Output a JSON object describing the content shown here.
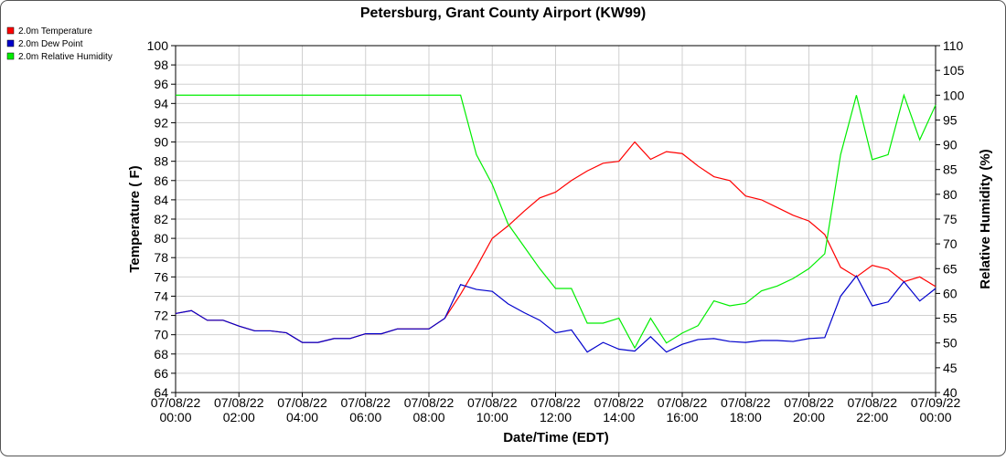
{
  "chart_data": {
    "type": "line",
    "title": "Petersburg, Grant County Airport (KW99)",
    "x_label": "Date/Time (EDT)",
    "y_label": "Temperature ( F)",
    "y2_label": "Relative Humidity (%)",
    "x": [
      0,
      0.5,
      1,
      1.5,
      2,
      2.5,
      3,
      3.5,
      4,
      4.5,
      5,
      5.5,
      6,
      6.5,
      7,
      7.5,
      8,
      8.5,
      9,
      9.5,
      10,
      10.5,
      11,
      11.5,
      12,
      12.5,
      13,
      13.5,
      14,
      14.5,
      15,
      15.5,
      16,
      16.5,
      17,
      17.5,
      18,
      18.5,
      19,
      19.5,
      20,
      20.5,
      21,
      21.5,
      22,
      22.5,
      23,
      23.5,
      24
    ],
    "series": [
      {
        "name": "2.0m Temperature",
        "color": "#ff0000",
        "axis": "y",
        "values": [
          72.2,
          72.5,
          71.5,
          71.5,
          70.9,
          70.4,
          70.4,
          70.2,
          69.2,
          69.2,
          69.6,
          69.6,
          70.1,
          70.1,
          70.6,
          70.6,
          70.6,
          71.7,
          74.2,
          77.0,
          80.0,
          81.3,
          82.8,
          84.2,
          84.8,
          86.0,
          87.0,
          87.8,
          88.0,
          90.0,
          88.2,
          89.0,
          88.8,
          87.5,
          86.4,
          86.0,
          84.4,
          84.0,
          83.2,
          82.4,
          81.8,
          80.4,
          77.0,
          76.0,
          77.2,
          76.8,
          75.5,
          76.0,
          75.0
        ]
      },
      {
        "name": "2.0m Dew Point",
        "color": "#0000cc",
        "axis": "y",
        "values": [
          72.2,
          72.5,
          71.5,
          71.5,
          70.9,
          70.4,
          70.4,
          70.2,
          69.2,
          69.2,
          69.6,
          69.6,
          70.1,
          70.1,
          70.6,
          70.6,
          70.6,
          71.7,
          75.2,
          74.7,
          74.5,
          73.2,
          72.3,
          71.5,
          70.2,
          70.5,
          68.2,
          69.2,
          68.5,
          68.3,
          69.8,
          68.2,
          69.0,
          69.5,
          69.6,
          69.3,
          69.2,
          69.4,
          69.4,
          69.3,
          69.6,
          69.7,
          74.0,
          76.1,
          73.0,
          73.4,
          75.5,
          73.5,
          74.8
        ]
      },
      {
        "name": "2.0m Relative Humidity",
        "color": "#00ee00",
        "axis": "y2",
        "values": [
          100,
          100,
          100,
          100,
          100,
          100,
          100,
          100,
          100,
          100,
          100,
          100,
          100,
          100,
          100,
          100,
          100,
          100,
          100,
          88,
          82,
          74,
          69.5,
          65,
          61,
          61,
          54,
          54,
          55,
          49,
          55,
          50,
          52,
          53.5,
          58.5,
          57.5,
          58,
          60.5,
          61.5,
          63,
          65,
          68,
          88,
          100,
          87,
          88,
          100,
          91,
          98
        ]
      }
    ],
    "xlim": [
      0,
      24
    ],
    "xticks": [
      {
        "value": 0,
        "label": "07/08/22 00:00"
      },
      {
        "value": 2,
        "label": "07/08/22 02:00"
      },
      {
        "value": 4,
        "label": "07/08/22 04:00"
      },
      {
        "value": 6,
        "label": "07/08/22 06:00"
      },
      {
        "value": 8,
        "label": "07/08/22 08:00"
      },
      {
        "value": 10,
        "label": "07/08/22 10:00"
      },
      {
        "value": 12,
        "label": "07/08/22 12:00"
      },
      {
        "value": 14,
        "label": "07/08/22 14:00"
      },
      {
        "value": 16,
        "label": "07/08/22 16:00"
      },
      {
        "value": 18,
        "label": "07/08/22 18:00"
      },
      {
        "value": 20,
        "label": "07/08/22 20:00"
      },
      {
        "value": 22,
        "label": "07/08/22 22:00"
      },
      {
        "value": 24,
        "label": "07/09/22 00:00"
      }
    ],
    "ylim": [
      64,
      100
    ],
    "yticks": [
      64,
      66,
      68,
      70,
      72,
      74,
      76,
      78,
      80,
      82,
      84,
      86,
      88,
      90,
      92,
      94,
      96,
      98,
      100
    ],
    "y2lim": [
      40,
      110
    ],
    "y2ticks": [
      40,
      45,
      50,
      55,
      60,
      65,
      70,
      75,
      80,
      85,
      90,
      95,
      100,
      105,
      110
    ],
    "grid": true,
    "legend_position": "top-left"
  }
}
